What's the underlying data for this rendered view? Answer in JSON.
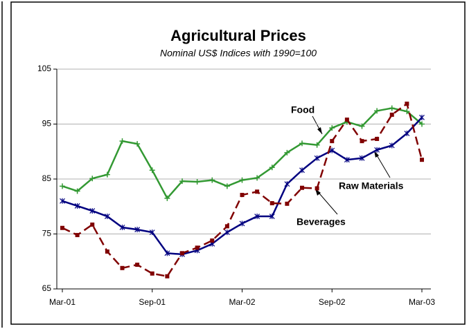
{
  "chart_data": {
    "type": "line",
    "title": "Agricultural Prices",
    "subtitle": "Nominal US$ Indices with 1990=100",
    "categories": [
      "Mar-01",
      null,
      null,
      null,
      null,
      null,
      "Sep-01",
      null,
      null,
      null,
      null,
      null,
      "Mar-02",
      null,
      null,
      null,
      null,
      null,
      "Sep-02",
      null,
      null,
      null,
      null,
      null,
      "Mar-03"
    ],
    "series": [
      {
        "name": "Food",
        "color": "#339933",
        "values": [
          83.7,
          82.8,
          85.1,
          85.8,
          91.9,
          91.4,
          86.6,
          81.5,
          84.6,
          84.5,
          84.8,
          83.7,
          84.8,
          85.2,
          87.1,
          89.8,
          91.5,
          91.2,
          94.3,
          95.4,
          94.6,
          97.4,
          97.9,
          97.3,
          95.0
        ]
      },
      {
        "name": "Raw Materials",
        "color": "#000080",
        "values": [
          81.0,
          80.1,
          79.2,
          78.2,
          76.2,
          75.8,
          75.3,
          71.5,
          71.3,
          72.0,
          73.2,
          75.3,
          76.9,
          78.2,
          78.2,
          84.1,
          86.6,
          88.8,
          90.2,
          88.5,
          88.8,
          90.3,
          91.1,
          93.3,
          96.2
        ]
      },
      {
        "name": "Beverages",
        "color": "#800000",
        "values": [
          76.1,
          74.8,
          76.7,
          71.8,
          68.8,
          69.4,
          67.8,
          67.3,
          71.5,
          72.5,
          73.8,
          76.4,
          82.1,
          82.7,
          80.6,
          80.5,
          83.4,
          83.3,
          91.9,
          95.8,
          91.9,
          92.3,
          96.7,
          98.7,
          88.5
        ]
      }
    ],
    "ylim": [
      65,
      105
    ],
    "yticks": [
      65,
      75,
      85,
      95,
      105
    ],
    "grid": true
  }
}
